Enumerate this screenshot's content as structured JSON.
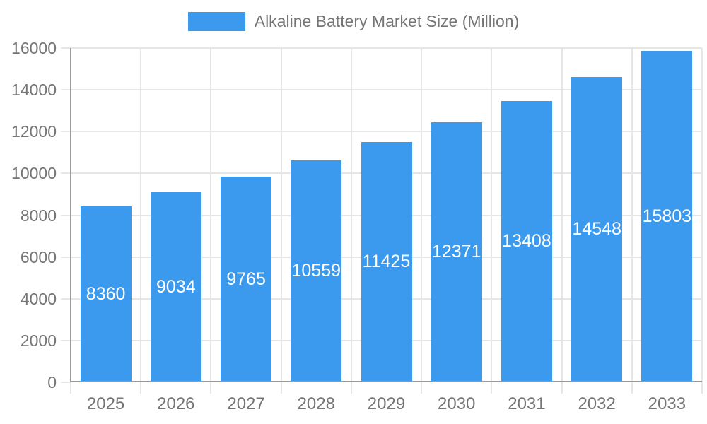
{
  "legend": {
    "label": "Alkaline Battery Market Size (Million)"
  },
  "chart_data": {
    "type": "bar",
    "title": "Alkaline Battery Market Size (Million)",
    "series_name": "Alkaline Battery Market Size (Million)",
    "categories": [
      "2025",
      "2026",
      "2027",
      "2028",
      "2029",
      "2030",
      "2031",
      "2032",
      "2033"
    ],
    "values": [
      8360,
      9034,
      9765,
      10559,
      11425,
      12371,
      13408,
      14548,
      15803
    ],
    "bar_labels": [
      "8360",
      "9034",
      "9765",
      "10559",
      "11425",
      "12371",
      "13408",
      "14548",
      "15803"
    ],
    "xlabel": "",
    "ylabel": "",
    "ylim": [
      0,
      16000
    ],
    "ytick_step": 2000,
    "yticks": [
      0,
      2000,
      4000,
      6000,
      8000,
      10000,
      12000,
      14000,
      16000
    ],
    "grid": true,
    "legend_position": "top",
    "colors": {
      "bar": "#3B99EE",
      "grid": "#E6E6E6",
      "axis": "#9B9B9B",
      "tick_text": "#757575",
      "bar_label_text": "#ffffff"
    }
  }
}
